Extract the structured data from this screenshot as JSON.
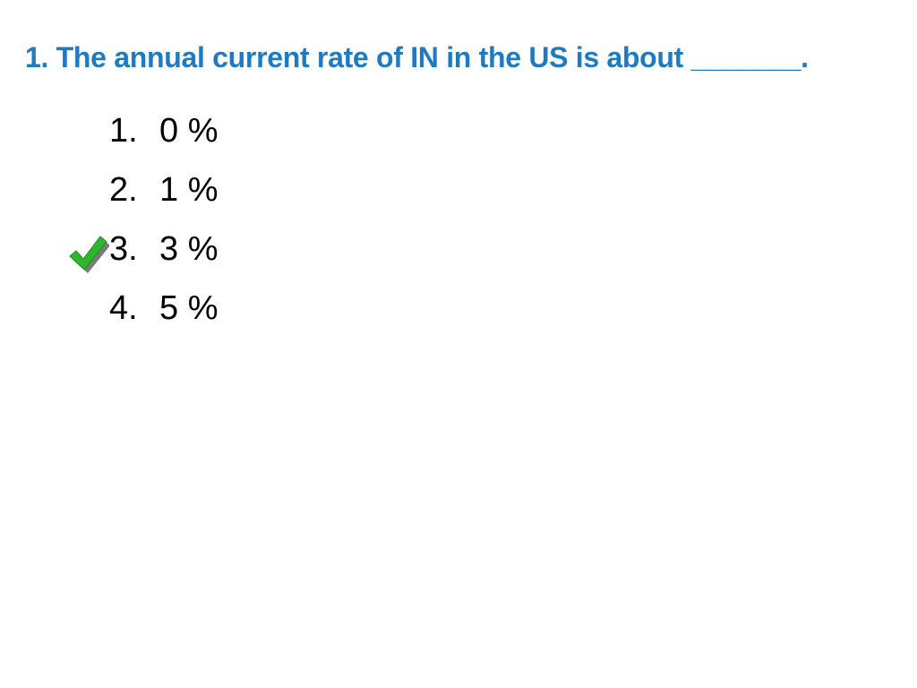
{
  "question": {
    "title": "1. The annual current rate of IN in the US is about _______.",
    "color": "#1F7BC1"
  },
  "options": [
    {
      "number": "1.",
      "text": "0 %",
      "correct": false
    },
    {
      "number": "2.",
      "text": "1 %",
      "correct": false
    },
    {
      "number": "3.",
      "text": "3 %",
      "correct": true
    },
    {
      "number": "4.",
      "text": "5 %",
      "correct": false
    }
  ],
  "icons": {
    "correct_marker": "check-mark-icon",
    "check_color": "#2DB52D"
  }
}
